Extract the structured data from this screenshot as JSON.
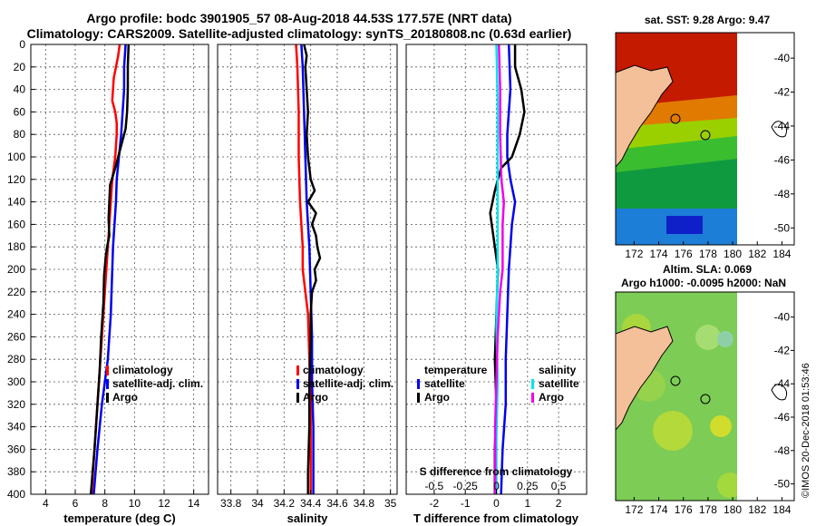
{
  "title": {
    "line1": "Argo profile: bodc 3901905_57 08-Aug-2018 44.53S 177.57E (NRT data)",
    "line2": "Climatology: CARS2009. Satellite-adjusted climatology: synTS_20180808.nc (0.63d earlier)"
  },
  "watermark": "©IMOS 20-Dec-2018 01:53:46",
  "colors": {
    "climatology": "#ff0000",
    "satellite": "#0000ee",
    "argo": "#000000",
    "salinity_sat": "#00e5ee",
    "salinity_argo": "#ee00ee"
  },
  "chart_data": [
    {
      "type": "line",
      "id": "temperature",
      "xlabel": "temperature (deg C)",
      "ylabel": "",
      "xlim": [
        3,
        15
      ],
      "ylim": [
        400,
        0
      ],
      "xticks": [
        4,
        6,
        8,
        10,
        12,
        14
      ],
      "yticks": [
        0,
        20,
        40,
        60,
        80,
        100,
        120,
        140,
        160,
        180,
        200,
        220,
        240,
        260,
        280,
        300,
        320,
        340,
        360,
        380,
        400
      ],
      "grid": true,
      "legend": [
        "climatology",
        "satellite-adj. clim.",
        "Argo"
      ],
      "series": [
        {
          "name": "climatology",
          "color": "#ff0000",
          "depth": [
            0,
            10,
            30,
            50,
            60,
            70,
            80,
            100,
            120,
            140,
            160,
            180,
            200,
            240,
            280,
            320,
            360,
            400
          ],
          "values": [
            9.0,
            8.9,
            8.6,
            8.5,
            8.7,
            8.8,
            8.8,
            8.7,
            8.5,
            8.4,
            8.3,
            8.2,
            8.1,
            7.9,
            7.7,
            7.5,
            7.3,
            7.1
          ]
        },
        {
          "name": "satellite-adj. clim.",
          "color": "#0000ee",
          "depth": [
            0,
            20,
            40,
            60,
            80,
            100,
            120,
            140,
            160,
            180,
            200,
            240,
            280,
            320,
            360,
            400
          ],
          "values": [
            9.4,
            9.3,
            9.3,
            9.2,
            9.1,
            8.95,
            8.8,
            8.75,
            8.65,
            8.55,
            8.5,
            8.4,
            8.2,
            7.8,
            7.5,
            7.25
          ]
        },
        {
          "name": "Argo",
          "color": "#000000",
          "depth": [
            0,
            20,
            40,
            60,
            75,
            90,
            110,
            125,
            140,
            155,
            170,
            180,
            190,
            205,
            230,
            260,
            290,
            320,
            360,
            400
          ],
          "values": [
            9.6,
            9.55,
            9.55,
            9.5,
            9.4,
            9.1,
            8.7,
            8.35,
            8.3,
            8.25,
            8.3,
            8.15,
            8.05,
            7.95,
            7.9,
            7.75,
            7.65,
            7.5,
            7.3,
            7.05
          ]
        }
      ]
    },
    {
      "type": "line",
      "id": "salinity",
      "xlabel": "salinity",
      "xlim": [
        33.7,
        35.05
      ],
      "ylim": [
        400,
        0
      ],
      "xticks": [
        33.8,
        34,
        34.2,
        34.4,
        34.6,
        34.8,
        35
      ],
      "xtick_labels": [
        "33.8",
        "34",
        "34.2",
        "34.4",
        "34.6",
        "34.8",
        "35"
      ],
      "grid": true,
      "legend": [
        "climatology",
        "satellite-adj. clim.",
        "Argo"
      ],
      "series": [
        {
          "name": "climatology",
          "color": "#ff0000",
          "depth": [
            0,
            20,
            60,
            100,
            140,
            160,
            180,
            200,
            220,
            240,
            280,
            320,
            360,
            400
          ],
          "values": [
            34.29,
            34.3,
            34.31,
            34.31,
            34.32,
            34.33,
            34.34,
            34.34,
            34.36,
            34.38,
            34.39,
            34.4,
            34.4,
            34.4
          ]
        },
        {
          "name": "satellite-adj. clim.",
          "color": "#0000ee",
          "depth": [
            0,
            20,
            60,
            100,
            140,
            180,
            220,
            260,
            300,
            340,
            400
          ],
          "values": [
            34.33,
            34.34,
            34.35,
            34.36,
            34.37,
            34.39,
            34.4,
            34.41,
            34.41,
            34.42,
            34.42
          ]
        },
        {
          "name": "Argo",
          "color": "#000000",
          "depth": [
            0,
            10,
            20,
            40,
            60,
            80,
            100,
            120,
            130,
            140,
            150,
            160,
            170,
            180,
            190,
            200,
            210,
            220,
            240,
            260,
            300,
            340,
            380,
            400
          ],
          "values": [
            34.35,
            34.37,
            34.36,
            34.37,
            34.38,
            34.37,
            34.38,
            34.4,
            34.43,
            34.38,
            34.44,
            34.41,
            34.44,
            34.45,
            34.47,
            34.43,
            34.44,
            34.41,
            34.4,
            34.4,
            34.39,
            34.39,
            34.38,
            34.38
          ]
        }
      ]
    },
    {
      "type": "line",
      "id": "difference",
      "xlabel": "T difference from climatology",
      "top_axis_label": "S difference from climatology",
      "xlim": [
        -2.9,
        2.9
      ],
      "ylim": [
        400,
        0
      ],
      "xticks": [
        -2,
        -1,
        0,
        1,
        2
      ],
      "s_ticks": [
        -0.5,
        -0.25,
        0,
        0.25,
        0.5
      ],
      "s_tick_labels": [
        "-0.5",
        "-0.25",
        "0",
        "0.25",
        "0.5"
      ],
      "grid": true,
      "legend_temperature": {
        "heading": "temperature",
        "items": [
          "satellite",
          "Argo"
        ]
      },
      "legend_salinity": {
        "heading": "salinity",
        "items": [
          "satellite",
          "Argo"
        ]
      },
      "series": [
        {
          "name": "temperature satellite",
          "color": "#0000ee",
          "depth": [
            0,
            40,
            80,
            100,
            120,
            140,
            160,
            200,
            240,
            280,
            320,
            360,
            400
          ],
          "values": [
            0.4,
            0.45,
            0.35,
            0.35,
            0.45,
            0.6,
            0.5,
            0.4,
            0.35,
            0.3,
            0.3,
            0.2,
            0.15
          ]
        },
        {
          "name": "temperature Argo",
          "color": "#000000",
          "depth": [
            0,
            20,
            40,
            60,
            80,
            100,
            110,
            130,
            150,
            170,
            200,
            240,
            280,
            320,
            360,
            400
          ],
          "values": [
            0.6,
            0.6,
            0.8,
            0.9,
            0.75,
            0.5,
            0.15,
            -0.05,
            -0.2,
            -0.1,
            0.05,
            0.0,
            -0.05,
            0.0,
            -0.05,
            -0.05
          ]
        },
        {
          "name": "salinity satellite",
          "color": "#00e5ee",
          "depth": [
            0,
            50,
            100,
            150,
            200,
            250,
            300,
            350,
            400
          ],
          "values": [
            0.0,
            0.01,
            0.01,
            0.01,
            0.01,
            0.0,
            0.01,
            0.0,
            0.0
          ]
        },
        {
          "name": "salinity Argo",
          "color": "#ee00ee",
          "depth": [
            0,
            40,
            80,
            120,
            140,
            160,
            180,
            200,
            220,
            260,
            300,
            340,
            380,
            400
          ],
          "values": [
            0.02,
            0.03,
            0.03,
            0.04,
            0.06,
            0.05,
            0.05,
            0.05,
            0.03,
            0.01,
            0.0,
            -0.01,
            -0.01,
            -0.01
          ]
        }
      ]
    },
    {
      "type": "heatmap",
      "id": "sst-map",
      "title": "sat. SST: 9.28 Argo: 9.47",
      "xticks": [
        172,
        174,
        176,
        178,
        180,
        182,
        184
      ],
      "yticks": [
        -40,
        -42,
        -44,
        -46,
        -48,
        -50
      ],
      "xlim": [
        170.5,
        185
      ],
      "ylim": [
        -51,
        -38.5
      ]
    },
    {
      "type": "heatmap",
      "id": "sla-map",
      "title_line1": "Altim. SLA: 0.069",
      "title_line2": "Argo h1000: -0.0095 h2000: NaN",
      "xticks": [
        172,
        174,
        176,
        178,
        180,
        182,
        184
      ],
      "yticks": [
        -40,
        -42,
        -44,
        -46,
        -48,
        -50
      ],
      "xlim": [
        170.5,
        185
      ],
      "ylim": [
        -51,
        -38.5
      ]
    }
  ]
}
